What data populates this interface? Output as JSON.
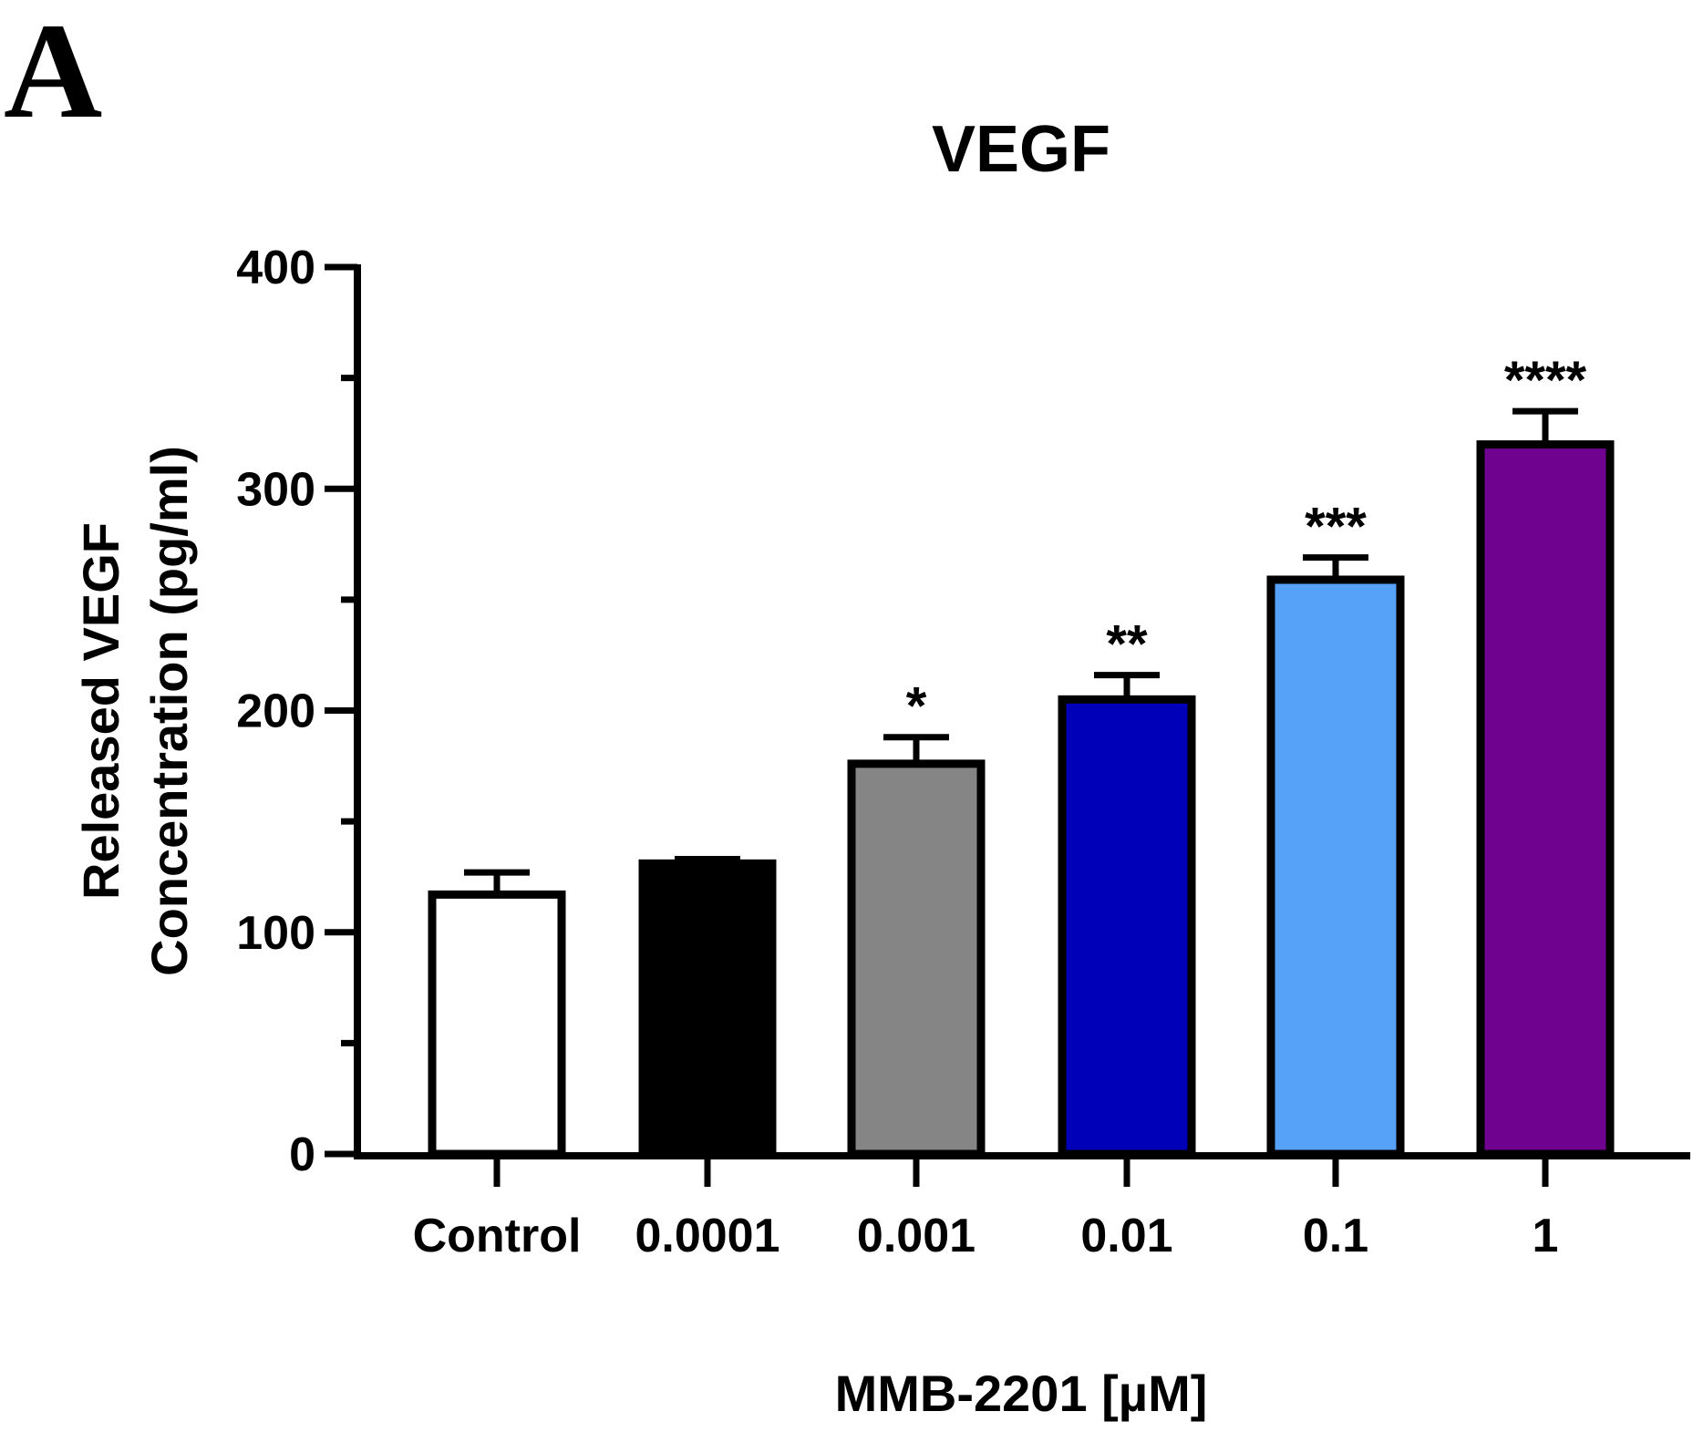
{
  "panel_label": "A",
  "chart_data": {
    "type": "bar",
    "title": "VEGF",
    "xlabel": "MMB-2201 [µM]",
    "ylabel_lines": [
      "Released VEGF",
      "Concentration (pg/ml)"
    ],
    "categories": [
      "Control",
      "0.0001",
      "0.001",
      "0.01",
      "0.1",
      "1"
    ],
    "values": [
      117,
      131,
      176,
      205,
      259,
      320
    ],
    "errors": [
      10,
      2,
      12,
      11,
      10,
      15
    ],
    "significance": [
      "",
      "",
      "*",
      "**",
      "***",
      "****"
    ],
    "bar_colors": [
      "#ffffff",
      "#000000",
      "#858585",
      "#0000b8",
      "#56a2f8",
      "#6f0390"
    ],
    "ylim": [
      0,
      400
    ],
    "yticks": [
      0,
      100,
      200,
      300,
      400
    ],
    "grid": false,
    "legend": "none"
  }
}
